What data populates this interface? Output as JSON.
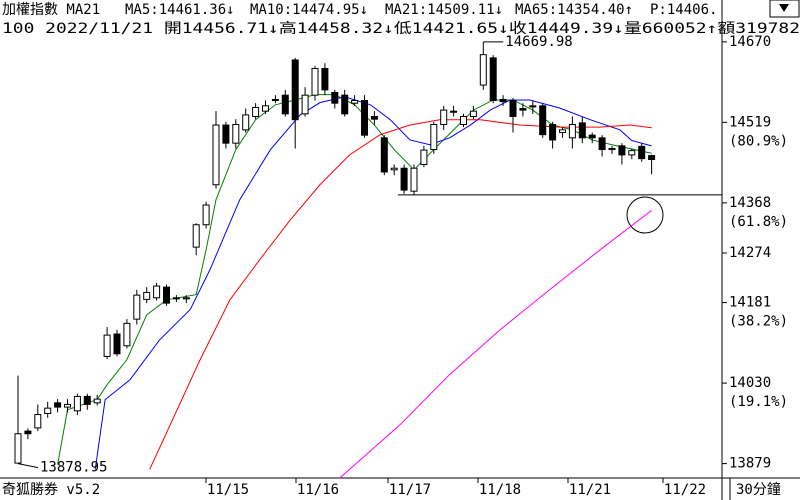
{
  "chart_data": {
    "type": "candlestick",
    "title": "加權指數 MA21",
    "info_line": "100 2022/11/21 開14456.71↓高14458.32↓低14421.65↓收14449.39↓量660052↑額319782",
    "price_label": "P:14406.",
    "price_color": "#008000",
    "brand": "奇狐勝券 v5.2",
    "period": "30分鐘",
    "xlabels": [
      "11/15",
      "11/16",
      "11/17",
      "11/18",
      "11/21",
      "11/22"
    ],
    "ylim": [
      13852,
      14711
    ],
    "yticks": [
      14670,
      14519,
      14368,
      14274,
      14181,
      14030,
      13879
    ],
    "ytick_notes": [
      null,
      "(80.9%)",
      "(61.8%)",
      null,
      "(38.2%)",
      "(19.1%)",
      null
    ],
    "high_mark": 14669.98,
    "low_mark": 13878.95,
    "support_level": 14383,
    "open": [
      13880,
      13940,
      13946,
      13973,
      13993,
      13985,
      13978,
      14005,
      13993,
      14080,
      14122,
      14100,
      14150,
      14187,
      14190,
      14210,
      14190,
      14188,
      14285,
      14327,
      14402,
      14514,
      14480,
      14505,
      14530,
      14540,
      14560,
      14570,
      14636,
      14535,
      14570,
      14620,
      14575,
      14570,
      14555,
      14560,
      14530,
      14490,
      14430,
      14433,
      14390,
      14440,
      14468,
      14515,
      14540,
      14515,
      14530,
      14589,
      14640,
      14562,
      14560,
      14545,
      14550,
      14550,
      14515,
      14500,
      14490,
      14518,
      14495,
      14490,
      14468,
      14475,
      14458,
      14474,
      14456.71
    ],
    "close": [
      13935,
      13935,
      13971,
      13983,
      13985,
      13990,
      14005,
      13990,
      14000,
      14120,
      14085,
      14142,
      14195,
      14200,
      14212,
      14180,
      14188,
      14190,
      14327,
      14364,
      14514,
      14480,
      14515,
      14533,
      14547,
      14550,
      14562,
      14535,
      14524,
      14570,
      14620,
      14580,
      14555,
      14535,
      14560,
      14495,
      14525,
      14426,
      14433,
      14392,
      14433,
      14467,
      14515,
      14542,
      14538,
      14530,
      14540,
      14646,
      14560,
      14558,
      14530,
      14542,
      14548,
      14496,
      14486,
      14505,
      14515,
      14490,
      14490,
      14468,
      14470,
      14458,
      14466,
      14451,
      14449.39
    ],
    "high": [
      14044,
      13945,
      13990,
      13995,
      14000,
      14000,
      14010,
      14010,
      14008,
      14135,
      14130,
      14150,
      14205,
      14210,
      14218,
      14215,
      14195,
      14195,
      14330,
      14370,
      14540,
      14520,
      14525,
      14545,
      14555,
      14560,
      14570,
      14580,
      14640,
      14585,
      14625,
      14630,
      14580,
      14580,
      14570,
      14570,
      14540,
      14495,
      14440,
      14440,
      14440,
      14475,
      14520,
      14550,
      14550,
      14535,
      14550,
      14670,
      14645,
      14570,
      14565,
      14555,
      14560,
      14555,
      14520,
      14510,
      14530,
      14530,
      14500,
      14495,
      14475,
      14480,
      14470,
      14480,
      14458.32
    ],
    "low": [
      13879,
      13925,
      13940,
      13965,
      13975,
      13975,
      13970,
      13980,
      13988,
      14075,
      14080,
      14095,
      14140,
      14180,
      14185,
      14175,
      14182,
      14180,
      14270,
      14320,
      14395,
      14470,
      14470,
      14500,
      14525,
      14535,
      14555,
      14530,
      14470,
      14530,
      14560,
      14570,
      14545,
      14530,
      14550,
      14490,
      14515,
      14420,
      14420,
      14385,
      14383,
      14435,
      14460,
      14505,
      14530,
      14510,
      14525,
      14580,
      14555,
      14550,
      14500,
      14530,
      14535,
      14490,
      14470,
      14490,
      14470,
      14480,
      14480,
      14455,
      14460,
      14440,
      14450,
      14445,
      14421.65
    ],
    "series": [
      {
        "label": "MA5:14461.36↓",
        "color": "#008000",
        "x": [
          4,
          5,
          8,
          9,
          11,
          13,
          15,
          18,
          19,
          20,
          22,
          24,
          26,
          28,
          30,
          32,
          34,
          36,
          38,
          40,
          42,
          44,
          46,
          48,
          50,
          52,
          54,
          56,
          58,
          60,
          64
        ],
        "values": [
          13877,
          13980,
          13999,
          14027,
          14074,
          14158,
          14186,
          14196,
          14280,
          14374,
          14468,
          14524,
          14552,
          14561,
          14571,
          14571,
          14552,
          14514,
          14468,
          14430,
          14468,
          14505,
          14542,
          14561,
          14561,
          14542,
          14514,
          14505,
          14486,
          14477,
          14461
        ]
      },
      {
        "label": "MA10:14474.95↓",
        "color": "#0000ff",
        "x": [
          7.8,
          8.8,
          11.3,
          14.3,
          17.4,
          19.4,
          22.4,
          25.5,
          28.5,
          30.5,
          33,
          35.6,
          37.6,
          39.6,
          41.6,
          43.6,
          45.7,
          47.7,
          49.7,
          51.7,
          54.7,
          57.8,
          60.8,
          62,
          64
        ],
        "values": [
          13868,
          13999,
          14036,
          14111,
          14168,
          14243,
          14374,
          14468,
          14533,
          14556,
          14567,
          14552,
          14524,
          14486,
          14477,
          14490,
          14514,
          14542,
          14561,
          14561,
          14546,
          14524,
          14505,
          14485,
          14475
        ]
      },
      {
        "label": "MA21:14509.11↓",
        "color": "#ff0000",
        "x": [
          13.3,
          18.4,
          21.4,
          24.4,
          27.5,
          30.5,
          33.5,
          36.6,
          39.6,
          42.6,
          46.7,
          50.7,
          54.7,
          58.8,
          61.8,
          64
        ],
        "values": [
          13868,
          14074,
          14186,
          14261,
          14336,
          14402,
          14458,
          14496,
          14514,
          14524,
          14524,
          14514,
          14510,
          14510,
          14514,
          14509
        ]
      },
      {
        "label": "MA65:14354.40↑",
        "color": "#ff00ff",
        "x": [
          32.5,
          38.6,
          43.6,
          48.7,
          53.7,
          58.8,
          64
        ],
        "values": [
          13852,
          13952,
          14046,
          14130,
          14205,
          14280,
          14354
        ]
      }
    ]
  }
}
